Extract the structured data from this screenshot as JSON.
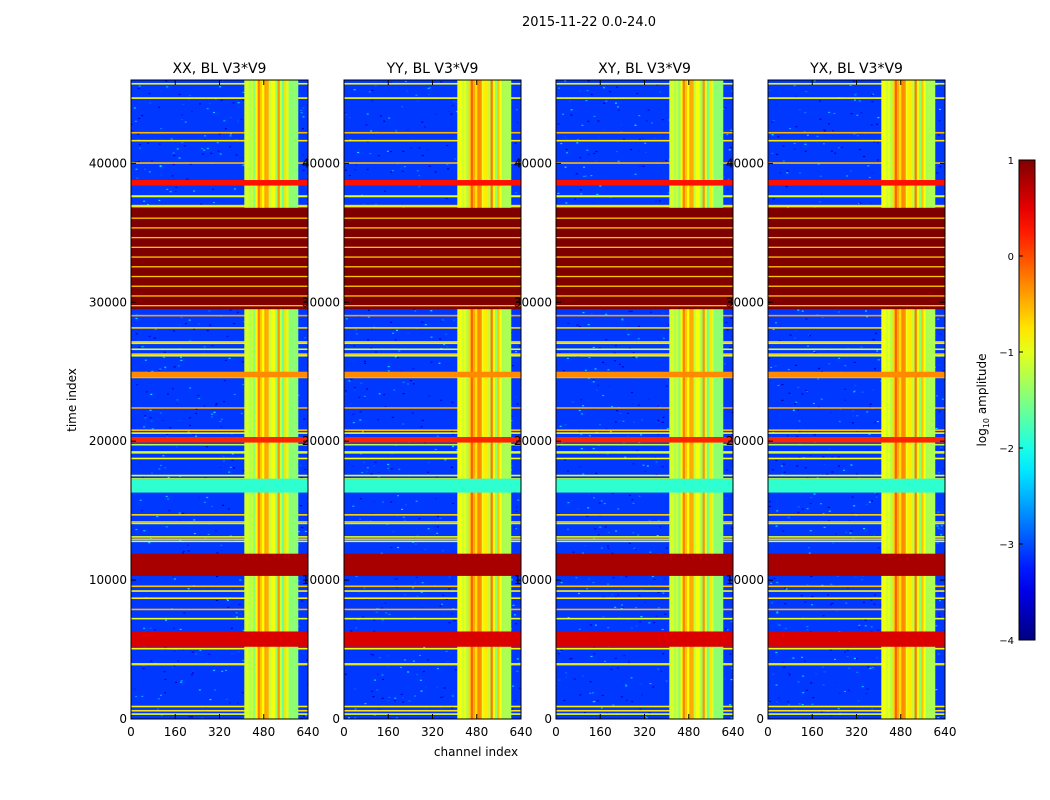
{
  "chart_data": {
    "type": "heatmap",
    "suptitle": "2015-11-22 0.0-24.0",
    "xlabel": "channel index",
    "ylabel": "time index",
    "xlim": [
      0,
      640
    ],
    "ylim": [
      0,
      46000
    ],
    "x_ticks": [
      0,
      160,
      320,
      480,
      640
    ],
    "y_ticks": [
      0,
      10000,
      20000,
      30000,
      40000
    ],
    "colormap": "jet",
    "colorbar": {
      "label_prefix": "log",
      "label_sub": "10",
      "label_suffix": " amplitude",
      "min": -4,
      "max": 1,
      "ticks": [
        1,
        0,
        -1,
        -2,
        -3,
        -4
      ],
      "tick_labels": [
        "1",
        "0",
        "−1",
        "−2",
        "−3",
        "−4"
      ]
    },
    "panels": [
      {
        "title": "XX, BL V3*V9"
      },
      {
        "title": "YY, BL V3*V9"
      },
      {
        "title": "XY, BL V3*V9"
      },
      {
        "title": "YX, BL V3*V9"
      }
    ],
    "structure": {
      "rfi_channel_band": [
        410,
        600
      ],
      "saturated_time_block": [
        29500,
        36800
      ],
      "strong_horizontal_bands": [
        {
          "from": 10300,
          "to": 11900,
          "level": 0.8
        },
        {
          "from": 5200,
          "to": 6300,
          "level": 0.55
        },
        {
          "from": 19900,
          "to": 20300,
          "level": 0.2
        },
        {
          "from": 24600,
          "to": 25000,
          "level": -0.3
        },
        {
          "from": 38400,
          "to": 38800,
          "level": 0.3
        },
        {
          "from": 16300,
          "to": 17300,
          "level": -1.9
        }
      ],
      "background_level": -3.1
    }
  }
}
